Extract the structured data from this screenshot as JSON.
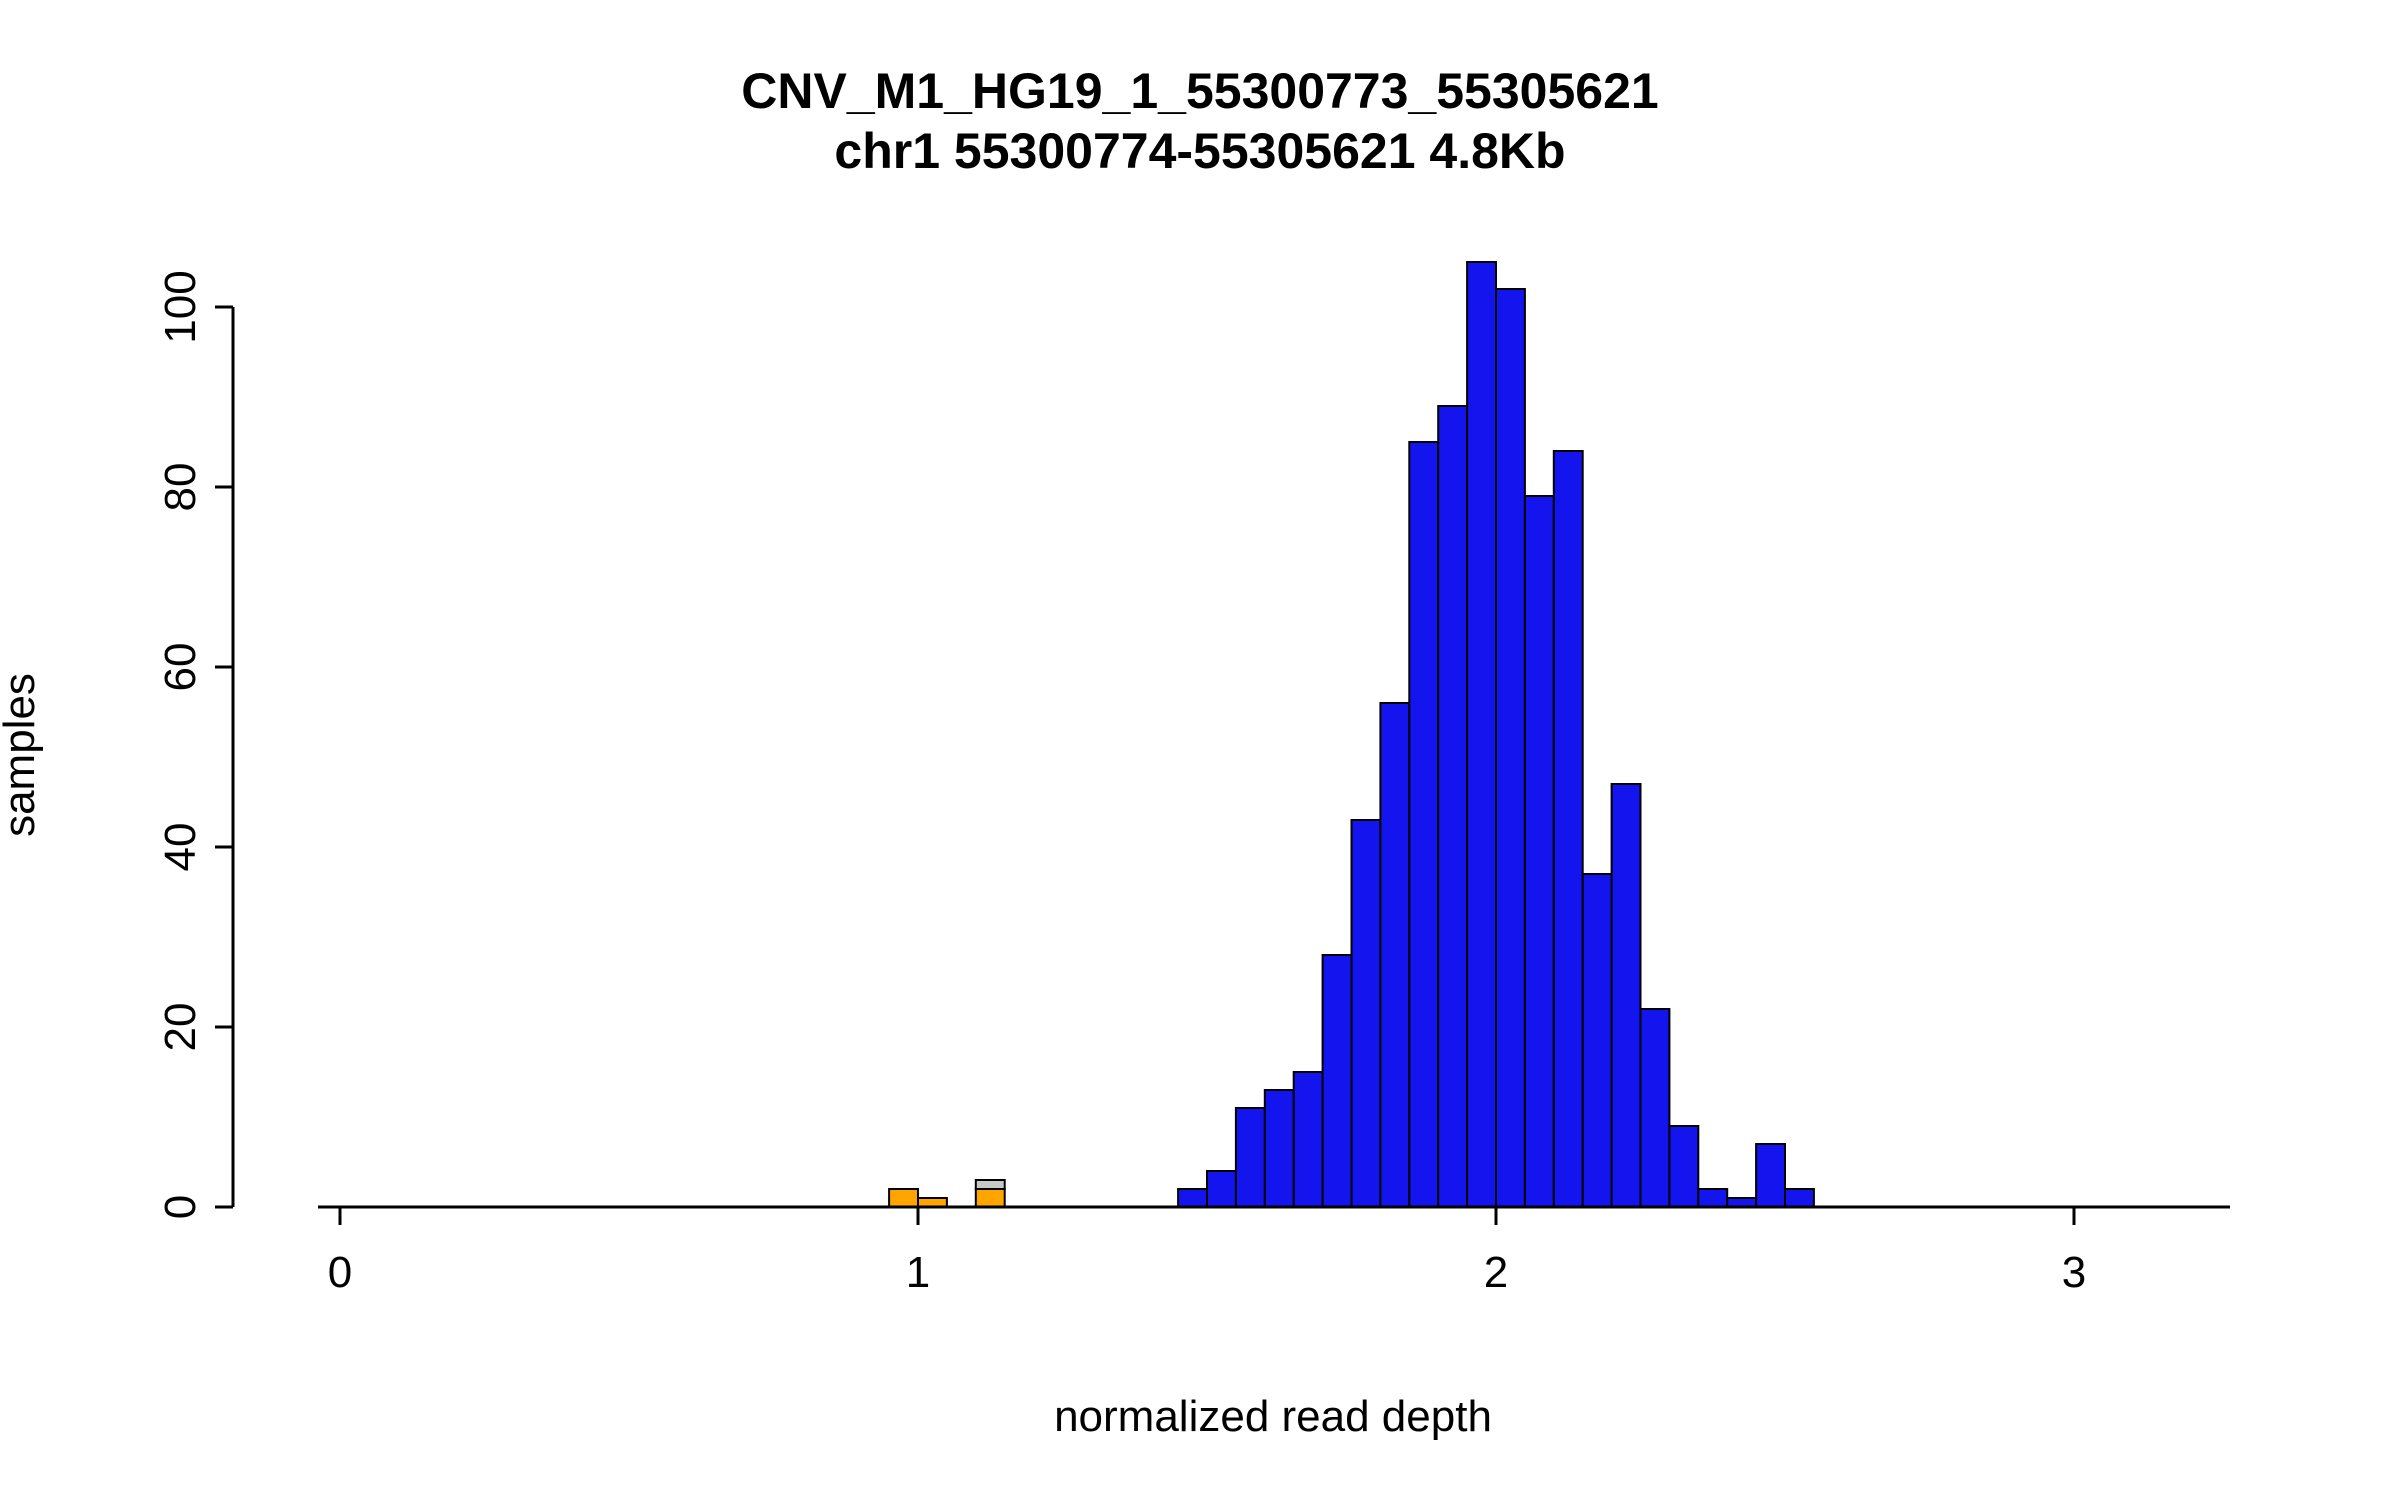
{
  "chart_data": {
    "type": "histogram",
    "title": "CNV_M1_HG19_1_55300773_55305621",
    "subtitle": "chr1 55300774-55305621 4.8Kb",
    "xlabel": "normalized read depth",
    "ylabel": "samples",
    "xlim": [
      0,
      3.3
    ],
    "ylim": [
      0,
      105
    ],
    "x_ticks": [
      0,
      1,
      2,
      3
    ],
    "y_ticks": [
      0,
      20,
      40,
      60,
      80,
      100
    ],
    "bin_width": 0.05,
    "legend_position": "none",
    "grid": false,
    "colors": {
      "blue": "#1414EE",
      "orange": "#FFA500",
      "gray": "#C8C8C8",
      "axis": "#000000"
    },
    "bars": [
      {
        "x": 0.95,
        "segments": [
          {
            "value": 2,
            "color": "orange"
          }
        ]
      },
      {
        "x": 1.0,
        "segments": [
          {
            "value": 1,
            "color": "orange"
          }
        ]
      },
      {
        "x": 1.1,
        "segments": [
          {
            "value": 2,
            "color": "orange"
          },
          {
            "value": 1,
            "color": "gray"
          }
        ]
      },
      {
        "x": 1.45,
        "segments": [
          {
            "value": 2,
            "color": "blue"
          }
        ]
      },
      {
        "x": 1.5,
        "segments": [
          {
            "value": 4,
            "color": "blue"
          }
        ]
      },
      {
        "x": 1.55,
        "segments": [
          {
            "value": 11,
            "color": "blue"
          }
        ]
      },
      {
        "x": 1.6,
        "segments": [
          {
            "value": 13,
            "color": "blue"
          }
        ]
      },
      {
        "x": 1.65,
        "segments": [
          {
            "value": 15,
            "color": "blue"
          }
        ]
      },
      {
        "x": 1.7,
        "segments": [
          {
            "value": 28,
            "color": "blue"
          }
        ]
      },
      {
        "x": 1.75,
        "segments": [
          {
            "value": 43,
            "color": "blue"
          }
        ]
      },
      {
        "x": 1.8,
        "segments": [
          {
            "value": 56,
            "color": "blue"
          }
        ]
      },
      {
        "x": 1.85,
        "segments": [
          {
            "value": 85,
            "color": "blue"
          }
        ]
      },
      {
        "x": 1.9,
        "segments": [
          {
            "value": 89,
            "color": "blue"
          }
        ]
      },
      {
        "x": 1.95,
        "segments": [
          {
            "value": 105,
            "color": "blue"
          }
        ]
      },
      {
        "x": 2.0,
        "segments": [
          {
            "value": 102,
            "color": "blue"
          }
        ]
      },
      {
        "x": 2.05,
        "segments": [
          {
            "value": 79,
            "color": "blue"
          }
        ]
      },
      {
        "x": 2.1,
        "segments": [
          {
            "value": 84,
            "color": "blue"
          }
        ]
      },
      {
        "x": 2.15,
        "segments": [
          {
            "value": 37,
            "color": "blue"
          }
        ]
      },
      {
        "x": 2.2,
        "segments": [
          {
            "value": 47,
            "color": "blue"
          }
        ]
      },
      {
        "x": 2.25,
        "segments": [
          {
            "value": 22,
            "color": "blue"
          }
        ]
      },
      {
        "x": 2.3,
        "segments": [
          {
            "value": 9,
            "color": "blue"
          }
        ]
      },
      {
        "x": 2.35,
        "segments": [
          {
            "value": 2,
            "color": "blue"
          }
        ]
      },
      {
        "x": 2.4,
        "segments": [
          {
            "value": 1,
            "color": "blue"
          }
        ]
      },
      {
        "x": 2.45,
        "segments": [
          {
            "value": 7,
            "color": "blue"
          }
        ]
      },
      {
        "x": 2.5,
        "segments": [
          {
            "value": 2,
            "color": "blue"
          }
        ]
      }
    ]
  }
}
